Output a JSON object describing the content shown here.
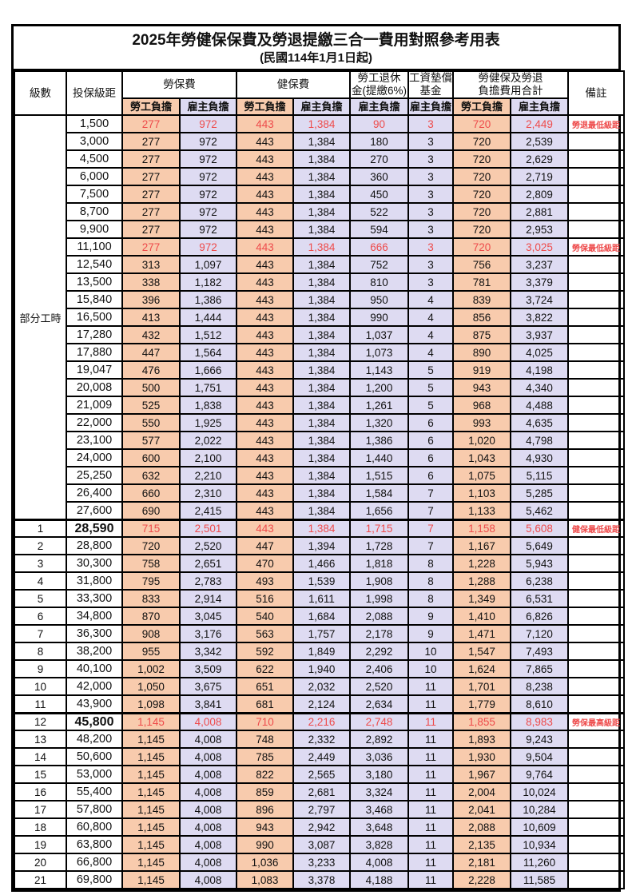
{
  "title": "2025年勞健保保費及勞退提繳三合一費用對照參考用表",
  "subtitle": "(民國114年1月1日起)",
  "colors": {
    "employee_bg": "#F8CBAD",
    "employer_bg": "#DEDBF2",
    "highlight_red": "#EE4B4B",
    "border": "#000000"
  },
  "header": {
    "level": "級數",
    "bracket": "投保級距",
    "labor_ins": "勞保費",
    "health_ins": "健保費",
    "pension_line1": "勞工退休",
    "pension_line2": "金(提繳6%)",
    "wage_fund_line1": "工資墊償",
    "wage_fund_line2": "基金",
    "total_line1": "勞健保及勞退",
    "total_line2": "負擔費用合計",
    "remark": "備註",
    "employee_share": "勞工負擔",
    "employer_share": "雇主負擔"
  },
  "group_label": "部分工時",
  "rows": [
    {
      "level": "",
      "bracket": "1,500",
      "values": [
        "277",
        "972",
        "443",
        "1,384",
        "90",
        "3",
        "720",
        "2,449"
      ],
      "remark": "勞退最低級距",
      "red": true,
      "emphasis": false
    },
    {
      "level": "",
      "bracket": "3,000",
      "values": [
        "277",
        "972",
        "443",
        "1,384",
        "180",
        "3",
        "720",
        "2,539"
      ],
      "remark": "",
      "red": false,
      "emphasis": false
    },
    {
      "level": "",
      "bracket": "4,500",
      "values": [
        "277",
        "972",
        "443",
        "1,384",
        "270",
        "3",
        "720",
        "2,629"
      ],
      "remark": "",
      "red": false,
      "emphasis": false
    },
    {
      "level": "",
      "bracket": "6,000",
      "values": [
        "277",
        "972",
        "443",
        "1,384",
        "360",
        "3",
        "720",
        "2,719"
      ],
      "remark": "",
      "red": false,
      "emphasis": false
    },
    {
      "level": "",
      "bracket": "7,500",
      "values": [
        "277",
        "972",
        "443",
        "1,384",
        "450",
        "3",
        "720",
        "2,809"
      ],
      "remark": "",
      "red": false,
      "emphasis": false
    },
    {
      "level": "",
      "bracket": "8,700",
      "values": [
        "277",
        "972",
        "443",
        "1,384",
        "522",
        "3",
        "720",
        "2,881"
      ],
      "remark": "",
      "red": false,
      "emphasis": false
    },
    {
      "level": "",
      "bracket": "9,900",
      "values": [
        "277",
        "972",
        "443",
        "1,384",
        "594",
        "3",
        "720",
        "2,953"
      ],
      "remark": "",
      "red": false,
      "emphasis": false
    },
    {
      "level": "",
      "bracket": "11,100",
      "values": [
        "277",
        "972",
        "443",
        "1,384",
        "666",
        "3",
        "720",
        "3,025"
      ],
      "remark": "勞保最低級距",
      "red": true,
      "emphasis": false
    },
    {
      "level": "",
      "bracket": "12,540",
      "values": [
        "313",
        "1,097",
        "443",
        "1,384",
        "752",
        "3",
        "756",
        "3,237"
      ],
      "remark": "",
      "red": false,
      "emphasis": false
    },
    {
      "level": "",
      "bracket": "13,500",
      "values": [
        "338",
        "1,182",
        "443",
        "1,384",
        "810",
        "3",
        "781",
        "3,379"
      ],
      "remark": "",
      "red": false,
      "emphasis": false
    },
    {
      "level": "",
      "bracket": "15,840",
      "values": [
        "396",
        "1,386",
        "443",
        "1,384",
        "950",
        "4",
        "839",
        "3,724"
      ],
      "remark": "",
      "red": false,
      "emphasis": false
    },
    {
      "level": "",
      "bracket": "16,500",
      "values": [
        "413",
        "1,444",
        "443",
        "1,384",
        "990",
        "4",
        "856",
        "3,822"
      ],
      "remark": "",
      "red": false,
      "emphasis": false
    },
    {
      "level": "",
      "bracket": "17,280",
      "values": [
        "432",
        "1,512",
        "443",
        "1,384",
        "1,037",
        "4",
        "875",
        "3,937"
      ],
      "remark": "",
      "red": false,
      "emphasis": false
    },
    {
      "level": "",
      "bracket": "17,880",
      "values": [
        "447",
        "1,564",
        "443",
        "1,384",
        "1,073",
        "4",
        "890",
        "4,025"
      ],
      "remark": "",
      "red": false,
      "emphasis": false
    },
    {
      "level": "",
      "bracket": "19,047",
      "values": [
        "476",
        "1,666",
        "443",
        "1,384",
        "1,143",
        "5",
        "919",
        "4,198"
      ],
      "remark": "",
      "red": false,
      "emphasis": false
    },
    {
      "level": "",
      "bracket": "20,008",
      "values": [
        "500",
        "1,751",
        "443",
        "1,384",
        "1,200",
        "5",
        "943",
        "4,340"
      ],
      "remark": "",
      "red": false,
      "emphasis": false
    },
    {
      "level": "",
      "bracket": "21,009",
      "values": [
        "525",
        "1,838",
        "443",
        "1,384",
        "1,261",
        "5",
        "968",
        "4,488"
      ],
      "remark": "",
      "red": false,
      "emphasis": false
    },
    {
      "level": "",
      "bracket": "22,000",
      "values": [
        "550",
        "1,925",
        "443",
        "1,384",
        "1,320",
        "6",
        "993",
        "4,635"
      ],
      "remark": "",
      "red": false,
      "emphasis": false
    },
    {
      "level": "",
      "bracket": "23,100",
      "values": [
        "577",
        "2,022",
        "443",
        "1,384",
        "1,386",
        "6",
        "1,020",
        "4,798"
      ],
      "remark": "",
      "red": false,
      "emphasis": false
    },
    {
      "level": "",
      "bracket": "24,000",
      "values": [
        "600",
        "2,100",
        "443",
        "1,384",
        "1,440",
        "6",
        "1,043",
        "4,930"
      ],
      "remark": "",
      "red": false,
      "emphasis": false
    },
    {
      "level": "",
      "bracket": "25,250",
      "values": [
        "632",
        "2,210",
        "443",
        "1,384",
        "1,515",
        "6",
        "1,075",
        "5,115"
      ],
      "remark": "",
      "red": false,
      "emphasis": false
    },
    {
      "level": "",
      "bracket": "26,400",
      "values": [
        "660",
        "2,310",
        "443",
        "1,384",
        "1,584",
        "7",
        "1,103",
        "5,285"
      ],
      "remark": "",
      "red": false,
      "emphasis": false
    },
    {
      "level": "",
      "bracket": "27,600",
      "values": [
        "690",
        "2,415",
        "443",
        "1,384",
        "1,656",
        "7",
        "1,133",
        "5,462"
      ],
      "remark": "",
      "red": false,
      "emphasis": false
    },
    {
      "level": "1",
      "bracket": "28,590",
      "values": [
        "715",
        "2,501",
        "443",
        "1,384",
        "1,715",
        "7",
        "1,158",
        "5,608"
      ],
      "remark": "健保最低級距",
      "red": true,
      "emphasis": true
    },
    {
      "level": "2",
      "bracket": "28,800",
      "values": [
        "720",
        "2,520",
        "447",
        "1,394",
        "1,728",
        "7",
        "1,167",
        "5,649"
      ],
      "remark": "",
      "red": false,
      "emphasis": false
    },
    {
      "level": "3",
      "bracket": "30,300",
      "values": [
        "758",
        "2,651",
        "470",
        "1,466",
        "1,818",
        "8",
        "1,228",
        "5,943"
      ],
      "remark": "",
      "red": false,
      "emphasis": false
    },
    {
      "level": "4",
      "bracket": "31,800",
      "values": [
        "795",
        "2,783",
        "493",
        "1,539",
        "1,908",
        "8",
        "1,288",
        "6,238"
      ],
      "remark": "",
      "red": false,
      "emphasis": false
    },
    {
      "level": "5",
      "bracket": "33,300",
      "values": [
        "833",
        "2,914",
        "516",
        "1,611",
        "1,998",
        "8",
        "1,349",
        "6,531"
      ],
      "remark": "",
      "red": false,
      "emphasis": false
    },
    {
      "level": "6",
      "bracket": "34,800",
      "values": [
        "870",
        "3,045",
        "540",
        "1,684",
        "2,088",
        "9",
        "1,410",
        "6,826"
      ],
      "remark": "",
      "red": false,
      "emphasis": false
    },
    {
      "level": "7",
      "bracket": "36,300",
      "values": [
        "908",
        "3,176",
        "563",
        "1,757",
        "2,178",
        "9",
        "1,471",
        "7,120"
      ],
      "remark": "",
      "red": false,
      "emphasis": false
    },
    {
      "level": "8",
      "bracket": "38,200",
      "values": [
        "955",
        "3,342",
        "592",
        "1,849",
        "2,292",
        "10",
        "1,547",
        "7,493"
      ],
      "remark": "",
      "red": false,
      "emphasis": false
    },
    {
      "level": "9",
      "bracket": "40,100",
      "values": [
        "1,002",
        "3,509",
        "622",
        "1,940",
        "2,406",
        "10",
        "1,624",
        "7,865"
      ],
      "remark": "",
      "red": false,
      "emphasis": false
    },
    {
      "level": "10",
      "bracket": "42,000",
      "values": [
        "1,050",
        "3,675",
        "651",
        "2,032",
        "2,520",
        "11",
        "1,701",
        "8,238"
      ],
      "remark": "",
      "red": false,
      "emphasis": false
    },
    {
      "level": "11",
      "bracket": "43,900",
      "values": [
        "1,098",
        "3,841",
        "681",
        "2,124",
        "2,634",
        "11",
        "1,779",
        "8,610"
      ],
      "remark": "",
      "red": false,
      "emphasis": false
    },
    {
      "level": "12",
      "bracket": "45,800",
      "values": [
        "1,145",
        "4,008",
        "710",
        "2,216",
        "2,748",
        "11",
        "1,855",
        "8,983"
      ],
      "remark": "勞保最高級距",
      "red": true,
      "emphasis": true
    },
    {
      "level": "13",
      "bracket": "48,200",
      "values": [
        "1,145",
        "4,008",
        "748",
        "2,332",
        "2,892",
        "11",
        "1,893",
        "9,243"
      ],
      "remark": "",
      "red": false,
      "emphasis": false
    },
    {
      "level": "14",
      "bracket": "50,600",
      "values": [
        "1,145",
        "4,008",
        "785",
        "2,449",
        "3,036",
        "11",
        "1,930",
        "9,504"
      ],
      "remark": "",
      "red": false,
      "emphasis": false
    },
    {
      "level": "15",
      "bracket": "53,000",
      "values": [
        "1,145",
        "4,008",
        "822",
        "2,565",
        "3,180",
        "11",
        "1,967",
        "9,764"
      ],
      "remark": "",
      "red": false,
      "emphasis": false
    },
    {
      "level": "16",
      "bracket": "55,400",
      "values": [
        "1,145",
        "4,008",
        "859",
        "2,681",
        "3,324",
        "11",
        "2,004",
        "10,024"
      ],
      "remark": "",
      "red": false,
      "emphasis": false
    },
    {
      "level": "17",
      "bracket": "57,800",
      "values": [
        "1,145",
        "4,008",
        "896",
        "2,797",
        "3,468",
        "11",
        "2,041",
        "10,284"
      ],
      "remark": "",
      "red": false,
      "emphasis": false
    },
    {
      "level": "18",
      "bracket": "60,800",
      "values": [
        "1,145",
        "4,008",
        "943",
        "2,942",
        "3,648",
        "11",
        "2,088",
        "10,609"
      ],
      "remark": "",
      "red": false,
      "emphasis": false
    },
    {
      "level": "19",
      "bracket": "63,800",
      "values": [
        "1,145",
        "4,008",
        "990",
        "3,087",
        "3,828",
        "11",
        "2,135",
        "10,934"
      ],
      "remark": "",
      "red": false,
      "emphasis": false
    },
    {
      "level": "20",
      "bracket": "66,800",
      "values": [
        "1,145",
        "4,008",
        "1,036",
        "3,233",
        "4,008",
        "11",
        "2,181",
        "11,260"
      ],
      "remark": "",
      "red": false,
      "emphasis": false
    },
    {
      "level": "21",
      "bracket": "69,800",
      "values": [
        "1,145",
        "4,008",
        "1,083",
        "3,378",
        "4,188",
        "11",
        "2,228",
        "11,585"
      ],
      "remark": "",
      "red": false,
      "emphasis": false
    }
  ]
}
